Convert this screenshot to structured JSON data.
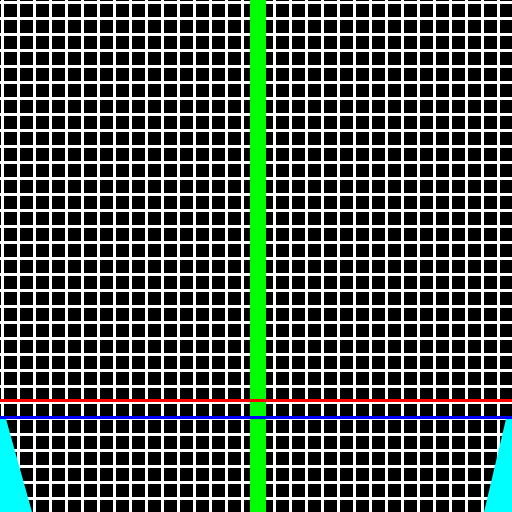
{
  "colors": {
    "background": "#000000",
    "grid": "#ffffff",
    "vertical_bar": "#00ff00",
    "horizontal_line_upper": "#ff0000",
    "horizontal_line_lower": "#0000ff",
    "corner_wedges": "#00ffff"
  }
}
